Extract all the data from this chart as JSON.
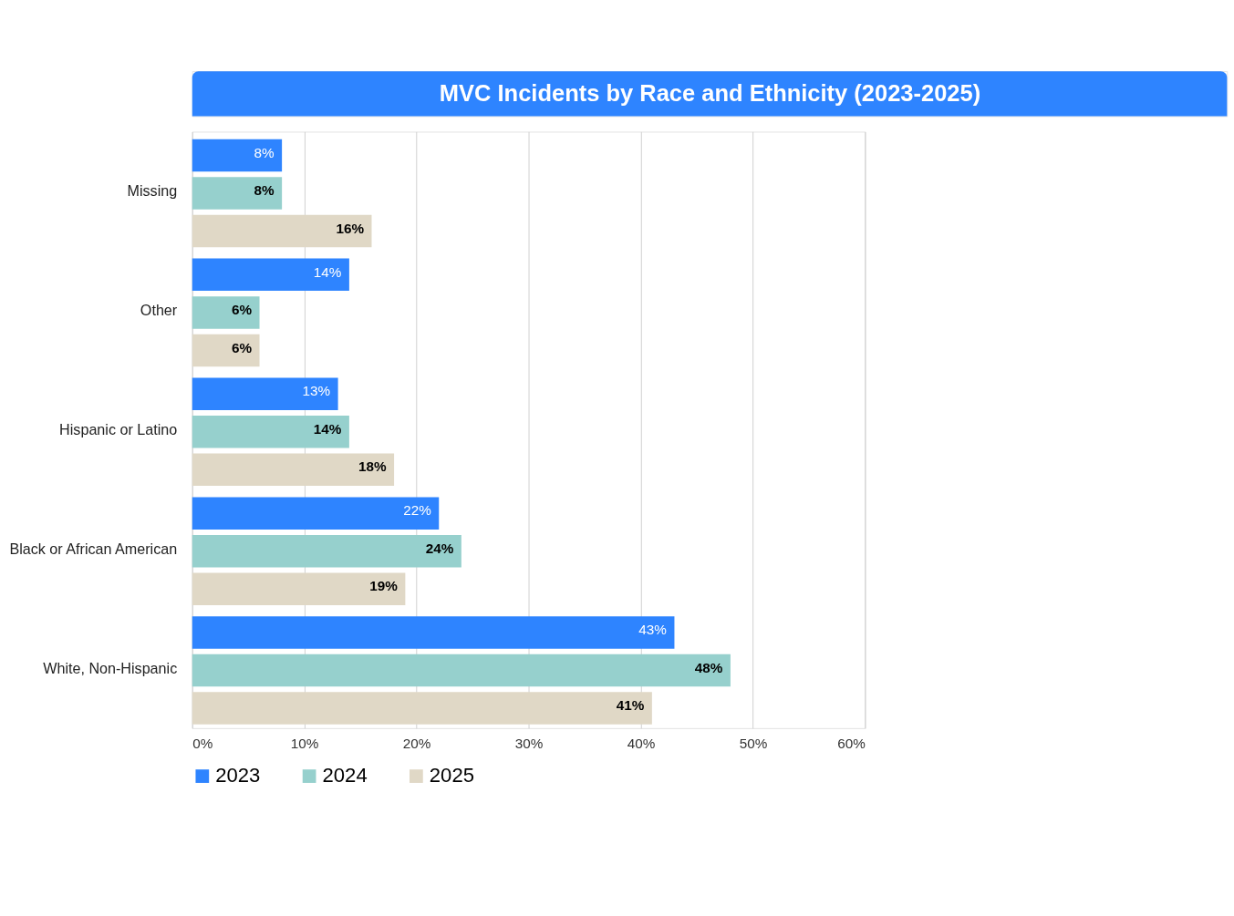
{
  "chart_data": {
    "type": "bar",
    "orientation": "horizontal",
    "title": "MVC Incidents by Race and Ethnicity (2023-2025)",
    "categories": [
      "Missing",
      "Other",
      "Hispanic or Latino",
      "Black or African American",
      "White, Non-Hispanic"
    ],
    "series": [
      {
        "name": "2023",
        "color": "#2e84ff",
        "values": [
          8,
          14,
          13,
          22,
          43
        ],
        "value_labels": [
          "8%",
          "14%",
          "13%",
          "22%",
          "43%"
        ]
      },
      {
        "name": "2024",
        "color": "#96d0cd",
        "values": [
          8,
          6,
          14,
          24,
          48
        ],
        "value_labels": [
          "8%",
          "6%",
          "14%",
          "24%",
          "48%"
        ]
      },
      {
        "name": "2025",
        "color": "#e0d8c6",
        "values": [
          16,
          6,
          18,
          19,
          41
        ],
        "value_labels": [
          "16%",
          "6%",
          "18%",
          "19%",
          "41%"
        ]
      }
    ],
    "xlim": [
      0,
      60
    ],
    "xticks": [
      {
        "value": 0,
        "label": "0%"
      },
      {
        "value": 10,
        "label": "10%"
      },
      {
        "value": 20,
        "label": "20%"
      },
      {
        "value": 30,
        "label": "30%"
      },
      {
        "value": 40,
        "label": "40%"
      },
      {
        "value": 50,
        "label": "50%"
      },
      {
        "value": 60,
        "label": "60%"
      }
    ],
    "grid": "x",
    "legend": "bottom"
  }
}
